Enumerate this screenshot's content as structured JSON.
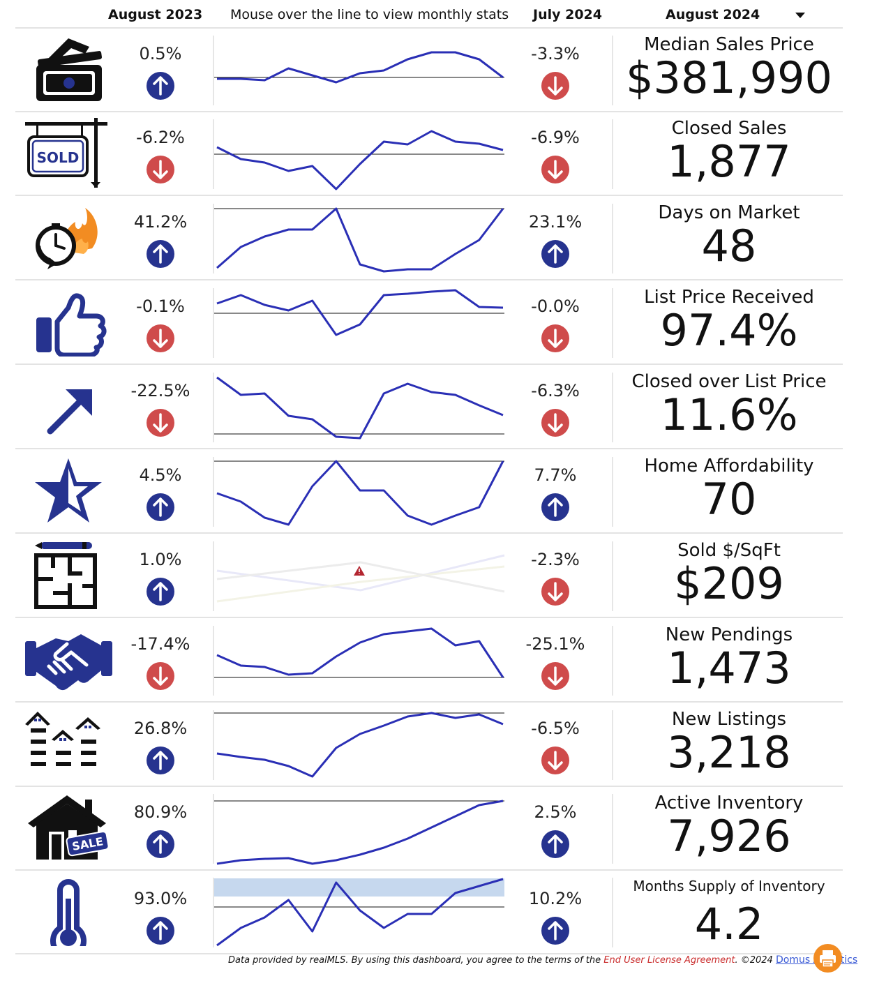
{
  "header": {
    "col_aug23": "August 2023",
    "hint": "Mouse over the line to view monthly stats",
    "col_jul24": "July 2024",
    "period_selected": "August 2024"
  },
  "colors": {
    "up": "#26338f",
    "down": "#cf4b4b",
    "line": "#2a2fb5",
    "accent": "#f28c22"
  },
  "rows": [
    {
      "icon": "money-icon",
      "name": "Median Sales Price",
      "value": "$381,990",
      "yoy": "0.5%",
      "yoy_dir": "up",
      "mom": "-3.3%",
      "mom_dir": "down"
    },
    {
      "icon": "sold-sign-icon",
      "name": "Closed Sales",
      "value": "1,877",
      "yoy": "-6.2%",
      "yoy_dir": "down",
      "mom": "-6.9%",
      "mom_dir": "down"
    },
    {
      "icon": "stopwatch-fire-icon",
      "name": "Days on Market",
      "value": "48",
      "yoy": "41.2%",
      "yoy_dir": "up",
      "mom": "23.1%",
      "mom_dir": "up"
    },
    {
      "icon": "thumbs-up-icon",
      "name": "List Price Received",
      "value": "97.4%",
      "yoy": "-0.1%",
      "yoy_dir": "down",
      "mom": "-0.0%",
      "mom_dir": "down"
    },
    {
      "icon": "trend-arrow-icon",
      "name": "Closed over List Price",
      "value": "11.6%",
      "yoy": "-22.5%",
      "yoy_dir": "down",
      "mom": "-6.3%",
      "mom_dir": "down"
    },
    {
      "icon": "star-icon",
      "name": "Home Affordability",
      "value": "70",
      "yoy": "4.5%",
      "yoy_dir": "up",
      "mom": "7.7%",
      "mom_dir": "up"
    },
    {
      "icon": "floorplan-icon",
      "name": "Sold $/SqFt",
      "value": "$209",
      "yoy": "1.0%",
      "yoy_dir": "up",
      "mom": "-2.3%",
      "mom_dir": "down"
    },
    {
      "icon": "handshake-icon",
      "name": "New Pendings",
      "value": "1,473",
      "yoy": "-17.4%",
      "yoy_dir": "down",
      "mom": "-25.1%",
      "mom_dir": "down"
    },
    {
      "icon": "houses-icon",
      "name": "New Listings",
      "value": "3,218",
      "yoy": "26.8%",
      "yoy_dir": "up",
      "mom": "-6.5%",
      "mom_dir": "down"
    },
    {
      "icon": "house-sale-icon",
      "name": "Active Inventory",
      "value": "7,926",
      "yoy": "80.9%",
      "yoy_dir": "up",
      "mom": "2.5%",
      "mom_dir": "up"
    },
    {
      "icon": "thermometer-icon",
      "name": "Months Supply of Inventory",
      "value": "4.2",
      "yoy": "93.0%",
      "yoy_dir": "up",
      "mom": "10.2%",
      "mom_dir": "up"
    }
  ],
  "sparklines": [
    [
      0.4,
      0.4,
      0.38,
      0.55,
      0.45,
      0.35,
      0.48,
      0.52,
      0.68,
      0.78,
      0.78,
      0.68,
      0.42
    ],
    [
      0.62,
      0.45,
      0.4,
      0.28,
      0.35,
      0.02,
      0.38,
      0.7,
      0.66,
      0.85,
      0.7,
      0.67,
      0.58
    ],
    [
      0.1,
      0.4,
      0.55,
      0.65,
      0.65,
      0.95,
      0.15,
      0.05,
      0.08,
      0.08,
      0.3,
      0.5,
      0.95
    ],
    [
      0.8,
      0.92,
      0.78,
      0.7,
      0.84,
      0.35,
      0.5,
      0.92,
      0.94,
      0.97,
      0.99,
      0.75,
      0.74
    ],
    [
      0.95,
      0.7,
      0.72,
      0.4,
      0.35,
      0.1,
      0.08,
      0.72,
      0.86,
      0.74,
      0.7,
      0.55,
      0.41
    ],
    [
      0.5,
      0.38,
      0.15,
      0.05,
      0.6,
      0.96,
      0.54,
      0.54,
      0.18,
      0.05,
      0.18,
      0.3,
      0.96
    ],
    [],
    [
      0.6,
      0.45,
      0.43,
      0.32,
      0.34,
      0.58,
      0.78,
      0.9,
      0.94,
      0.98,
      0.74,
      0.8,
      0.28
    ],
    [
      0.4,
      0.35,
      0.31,
      0.22,
      0.07,
      0.48,
      0.68,
      0.8,
      0.93,
      0.98,
      0.91,
      0.96,
      0.82
    ],
    [
      0.02,
      0.07,
      0.09,
      0.1,
      0.02,
      0.07,
      0.15,
      0.25,
      0.38,
      0.54,
      0.7,
      0.86,
      0.92
    ],
    [
      0.05,
      0.3,
      0.45,
      0.7,
      0.25,
      0.95,
      0.55,
      0.3,
      0.5,
      0.5,
      0.8,
      0.9,
      1.0
    ]
  ],
  "reference_lines": [
    0.42,
    0.52,
    0.95,
    0.66,
    0.14,
    0.96,
    null,
    0.28,
    0.98,
    0.92,
    0.6
  ],
  "footer": {
    "prefix": "Data provided by realMLS.  By using this dashboard, you agree to the terms of the ",
    "eula": "End User License Agreement",
    "mid": ".  ©2024 ",
    "brand": "Domus Analytics"
  }
}
